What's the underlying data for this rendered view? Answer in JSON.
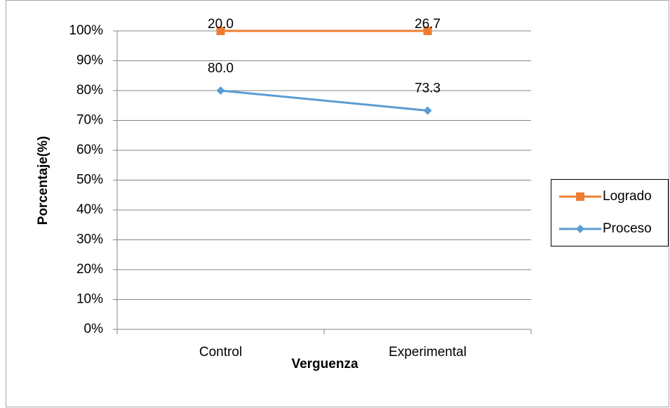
{
  "chart_data": {
    "type": "line",
    "stacked": true,
    "x_label": "Verguenza",
    "y_label": "Porcentaje(%)",
    "categories": [
      "Control",
      "Experimental"
    ],
    "series": [
      {
        "name": "Proceso",
        "color": "#5b9bd5",
        "marker": "diamond",
        "values": [
          80.0,
          73.3
        ],
        "value_labels": [
          "80.0",
          "73.3"
        ]
      },
      {
        "name": "Logrado",
        "color": "#ed7d31",
        "marker": "square",
        "values": [
          20.0,
          26.7
        ],
        "value_labels": [
          "20.0",
          "26.7"
        ]
      }
    ],
    "ylim": [
      0,
      100
    ],
    "yticks": [
      {
        "value": 0,
        "label": "0%"
      },
      {
        "value": 10,
        "label": "10%"
      },
      {
        "value": 20,
        "label": "20%"
      },
      {
        "value": 30,
        "label": "30%"
      },
      {
        "value": 40,
        "label": "40%"
      },
      {
        "value": 50,
        "label": "50%"
      },
      {
        "value": 60,
        "label": "60%"
      },
      {
        "value": 70,
        "label": "70%"
      },
      {
        "value": 80,
        "label": "80%"
      },
      {
        "value": 90,
        "label": "90%"
      },
      {
        "value": 100,
        "label": "100%"
      }
    ],
    "grid": true,
    "legend": "right"
  }
}
